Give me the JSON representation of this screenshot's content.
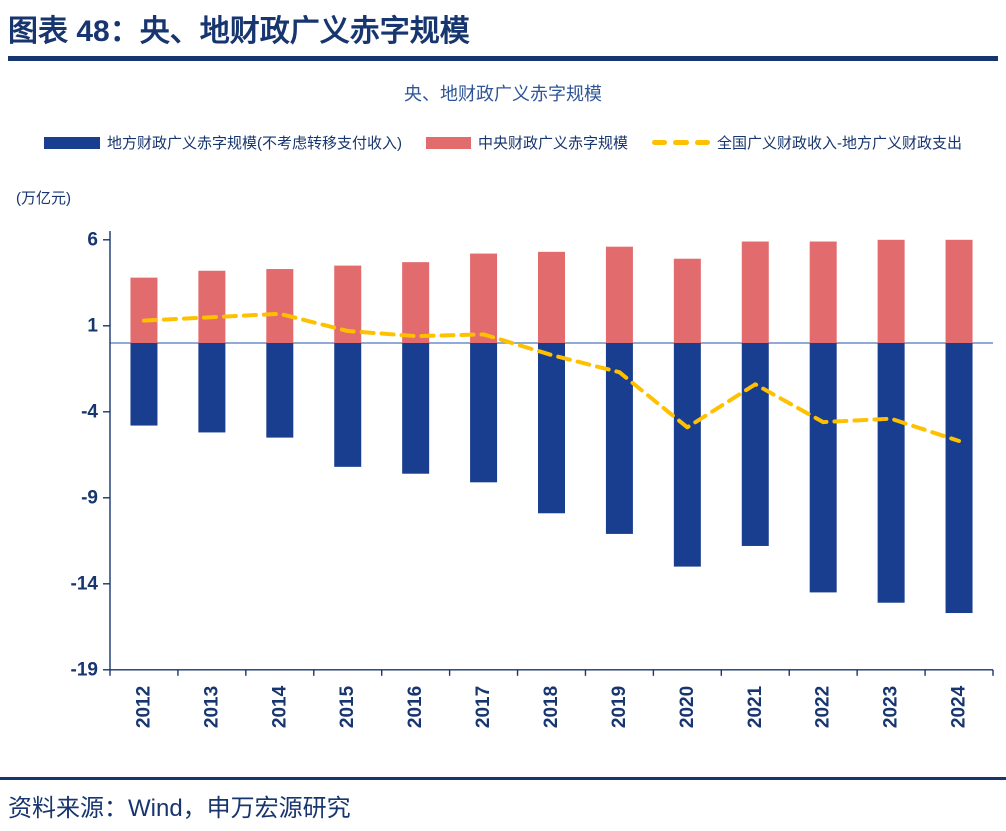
{
  "header": {
    "title": "图表 48：央、地财政广义赤字规模"
  },
  "chart": {
    "title": "央、地财政广义赤字规模",
    "unit_label": "(万亿元)"
  },
  "legend": [
    {
      "label": "地方财政广义赤字规模(不考虑转移支付收入)",
      "swatch": "bar",
      "color": "#1A3E8F"
    },
    {
      "label": "中央财政广义赤字规模",
      "swatch": "bar",
      "color": "#E16B6D"
    },
    {
      "label": "全国广义财政收入-地方广义财政支出",
      "swatch": "dashed-line",
      "color": "#FFC000"
    }
  ],
  "footer": {
    "source": "资料来源：Wind，申万宏源研究"
  },
  "chart_data": {
    "type": "bar",
    "subtype": "stacked-diverging-bars-with-dashed-line-overlay",
    "title": "央、地财政广义赤字规模",
    "ylabel": "(万亿元)",
    "xlabel": "",
    "categories": [
      "2012",
      "2013",
      "2014",
      "2015",
      "2016",
      "2017",
      "2018",
      "2019",
      "2020",
      "2021",
      "2022",
      "2023",
      "2024"
    ],
    "series": [
      {
        "name": "地方财政广义赤字规模(不考虑转移支付收入)",
        "type": "bar",
        "color": "#1A3E8F",
        "values": [
          -4.8,
          -5.2,
          -5.5,
          -7.2,
          -7.6,
          -8.1,
          -9.9,
          -11.1,
          -13.0,
          -11.8,
          -14.5,
          -15.1,
          -15.7
        ]
      },
      {
        "name": "中央财政广义赤字规模",
        "type": "bar",
        "color": "#E16B6D",
        "values": [
          3.8,
          4.2,
          4.3,
          4.5,
          4.7,
          5.2,
          5.3,
          5.6,
          4.9,
          5.9,
          5.9,
          6.0,
          6.0
        ]
      },
      {
        "name": "全国广义财政收入-地方广义财政支出",
        "type": "line",
        "line_style": "dashed",
        "color": "#FFC000",
        "values": [
          1.3,
          1.5,
          1.7,
          0.7,
          0.4,
          0.5,
          -0.7,
          -1.7,
          -4.9,
          -2.4,
          -4.6,
          -4.4,
          -5.7
        ]
      }
    ],
    "yticks": [
      6,
      1,
      -4,
      -9,
      -14,
      -19
    ],
    "ylim": [
      -19,
      6.5
    ],
    "grid": false,
    "legend_position": "top",
    "axis_color": "#17356F",
    "zero_line_color": "#6C8FCB"
  }
}
